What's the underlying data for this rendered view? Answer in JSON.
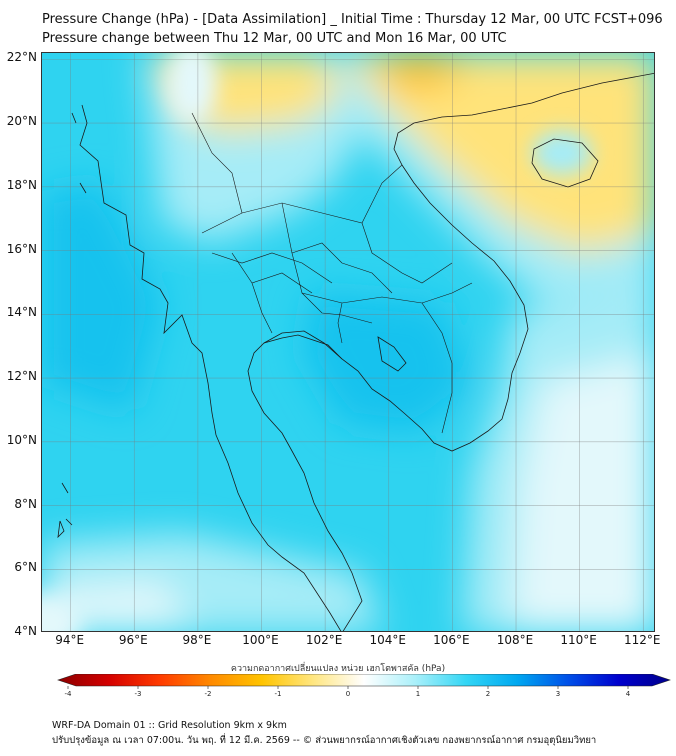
{
  "header": {
    "title_line1": "Pressure Change (hPa) - [Data Assimilation] _ Initial Time : Thursday 12 Mar, 00 UTC FCST+096",
    "title_line2": "Pressure change between Thu 12 Mar, 00 UTC and Mon 16 Mar, 00 UTC"
  },
  "map": {
    "lat_labels": [
      "22°N",
      "20°N",
      "18°N",
      "16°N",
      "14°N",
      "12°N",
      "10°N",
      "8°N",
      "6°N",
      "4°N"
    ],
    "lon_labels": [
      "94°E",
      "96°E",
      "98°E",
      "100°E",
      "102°E",
      "104°E",
      "106°E",
      "108°E",
      "110°E",
      "112°E"
    ],
    "lat_range": [
      4,
      22.2
    ],
    "lon_range": [
      93.1,
      112.4
    ],
    "colors": {
      "background_cyan": "#2fd3f0",
      "deep_cyan": "#14c2ee",
      "light_cyan": "#a6ecf7",
      "pale": "#e3f8fb",
      "yellow": "#ffe37a",
      "orange": "#ffc027",
      "coast": "#1a1a1a"
    }
  },
  "colorbar": {
    "title": "ความกดอากาศเปลี่ยนแปลง หน่วย เฮกโตพาสคัล (hPa)",
    "tick_labels": [
      "-4",
      "-3",
      "-2",
      "-1",
      "0",
      "1",
      "2",
      "3",
      "4"
    ],
    "range": [
      -4,
      4
    ],
    "colors": [
      "#8b0000",
      "#d40000",
      "#ff3b00",
      "#ff8a00",
      "#ffc400",
      "#ffe680",
      "#ffffff",
      "#aaf0fa",
      "#33d6f5",
      "#00a8f0",
      "#0050e8",
      "#0000cd",
      "#00008b"
    ]
  },
  "footer": {
    "line1": "WRF-DA Domain 01 :: Grid Resolution 9km x 9km",
    "line2": "ปรับปรุงข้อมูล ณ เวลา 07:00น. วัน พฤ. ที่ 12 มี.ค. 2569 -- © ส่วนพยากรณ์อากาศเชิงตัวเลข กองพยากรณ์อากาศ กรมอุตุนิยมวิทยา"
  }
}
